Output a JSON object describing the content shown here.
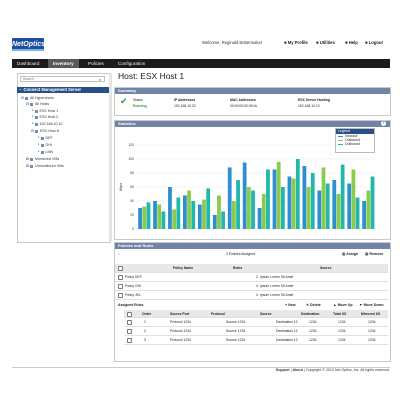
{
  "header": {
    "logo_text": "NetOptics",
    "welcome": "Welcome, Reginald Bottermaker",
    "links": [
      "My Profile",
      "Utilities",
      "Help",
      "Logout"
    ]
  },
  "nav": {
    "tabs": [
      "Dashboard",
      "Inventory",
      "Policies",
      "Configuration"
    ],
    "active": "Inventory"
  },
  "sidebar": {
    "search_placeholder": "Search",
    "tree_title": "Connect Management Server",
    "items": [
      "All Hypervisors",
      "All Hosts",
      "ESX Host 1",
      "ESX Host 2",
      "192.168.10.10",
      "ESX Host N",
      "DEF",
      "GHI",
      "LMN",
      "Monitored VMs",
      "Unmonitored VMs"
    ]
  },
  "page": {
    "title": "Host: ESX Host 1"
  },
  "summary": {
    "header": "Summary",
    "fields": [
      {
        "label": "Status",
        "value": "Running"
      },
      {
        "label": "IP Addresses",
        "value": "192.168.10.22"
      },
      {
        "label": "MAC Addresses",
        "value": "00:00:00:00:00:0c"
      },
      {
        "label": "ESX Server Hosting",
        "value": "192.168.10.10"
      }
    ]
  },
  "statistics": {
    "header": "Statistics",
    "legend_title": "Legend",
    "help_icon": "?"
  },
  "chart_data": {
    "type": "bar",
    "ylabel": "Mbps",
    "ylim": [
      0,
      120
    ],
    "yticks": [
      0,
      20,
      40,
      60,
      80,
      100,
      120
    ],
    "legend": [
      "Inbound",
      "Outbound",
      "Outbound"
    ],
    "colors": [
      "#2d8fd0",
      "#8acb4c",
      "#22b7ac"
    ],
    "groups": [
      [
        30,
        32,
        38
      ],
      [
        40,
        35,
        25
      ],
      [
        60,
        28,
        45
      ],
      [
        48,
        55,
        40
      ],
      [
        35,
        42,
        58
      ],
      [
        20,
        48,
        25
      ],
      [
        88,
        40,
        70
      ],
      [
        95,
        60,
        55
      ],
      [
        30,
        50,
        85
      ],
      [
        85,
        96,
        60
      ],
      [
        75,
        72,
        100
      ],
      [
        90,
        60,
        80
      ],
      [
        55,
        88,
        65
      ],
      [
        70,
        50,
        92
      ],
      [
        65,
        85,
        45
      ],
      [
        40,
        55,
        75
      ]
    ]
  },
  "policies": {
    "header": "Policies and Rules",
    "assigned_count": "3 Policies Assigned",
    "assign_label": "Assign",
    "remove_label": "Remove",
    "columns": [
      "Policy Name",
      "Rules",
      "Source"
    ],
    "rows": [
      {
        "name": "Policy DEF",
        "rules": "2",
        "source": "Ipsum Lorem Sit Amet"
      },
      {
        "name": "Policy GHI",
        "rules": "4",
        "source": "Ipsum Lorem Sit Amet"
      },
      {
        "name": "Policy JKL",
        "rules": "4",
        "source": "Ipsum Lorem Sit Amet"
      }
    ],
    "assigned_rules_title": "Assigned Rules",
    "rules_toolbar": [
      "New",
      "Delete",
      "Move Up",
      "Move Down"
    ],
    "rule_columns": [
      "Order",
      "Source Port",
      "Protocol",
      "Source",
      "Destination",
      "Total I/O",
      "Mirrored I/O"
    ],
    "rule_rows": [
      {
        "order": "1",
        "port": "Protocol 1234",
        "protocol": "Source 1234",
        "source": "Destination 12",
        "destination": "1234",
        "total": "1234",
        "mirrored": "1234"
      },
      {
        "order": "2",
        "port": "Protocol 1234",
        "protocol": "Source 1234",
        "source": "Destination 12",
        "destination": "1234",
        "total": "1234",
        "mirrored": "1234"
      },
      {
        "order": "3",
        "port": "Protocol 1234",
        "protocol": "Source 1234",
        "source": "Destination 12",
        "destination": "1234",
        "total": "1234",
        "mirrored": "1234"
      }
    ]
  },
  "footer": {
    "links": [
      "Support",
      "About"
    ],
    "copyright": "Copyright © 2013 Net Optics, Inc. All rights reserved."
  }
}
